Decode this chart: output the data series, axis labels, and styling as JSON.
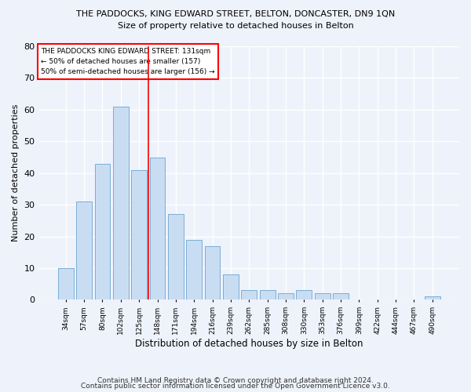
{
  "title": "THE PADDOCKS, KING EDWARD STREET, BELTON, DONCASTER, DN9 1QN",
  "subtitle": "Size of property relative to detached houses in Belton",
  "xlabel": "Distribution of detached houses by size in Belton",
  "ylabel": "Number of detached properties",
  "categories": [
    "34sqm",
    "57sqm",
    "80sqm",
    "102sqm",
    "125sqm",
    "148sqm",
    "171sqm",
    "194sqm",
    "216sqm",
    "239sqm",
    "262sqm",
    "285sqm",
    "308sqm",
    "330sqm",
    "353sqm",
    "376sqm",
    "399sqm",
    "422sqm",
    "444sqm",
    "467sqm",
    "490sqm"
  ],
  "values": [
    10,
    31,
    43,
    61,
    41,
    45,
    27,
    19,
    17,
    8,
    3,
    3,
    2,
    3,
    2,
    2,
    0,
    0,
    0,
    0,
    1
  ],
  "bar_color": "#c9ddf2",
  "bar_edge_color": "#7aadd4",
  "red_line_x": 4.5,
  "annotation_title": "THE PADDOCKS KING EDWARD STREET: 131sqm",
  "annotation_line1": "← 50% of detached houses are smaller (157)",
  "annotation_line2": "50% of semi-detached houses are larger (156) →",
  "ylim": [
    0,
    80
  ],
  "yticks": [
    0,
    10,
    20,
    30,
    40,
    50,
    60,
    70,
    80
  ],
  "background_color": "#eef2fb",
  "grid_color": "#ffffff",
  "footer_line1": "Contains HM Land Registry data © Crown copyright and database right 2024.",
  "footer_line2": "Contains public sector information licensed under the Open Government Licence v3.0."
}
